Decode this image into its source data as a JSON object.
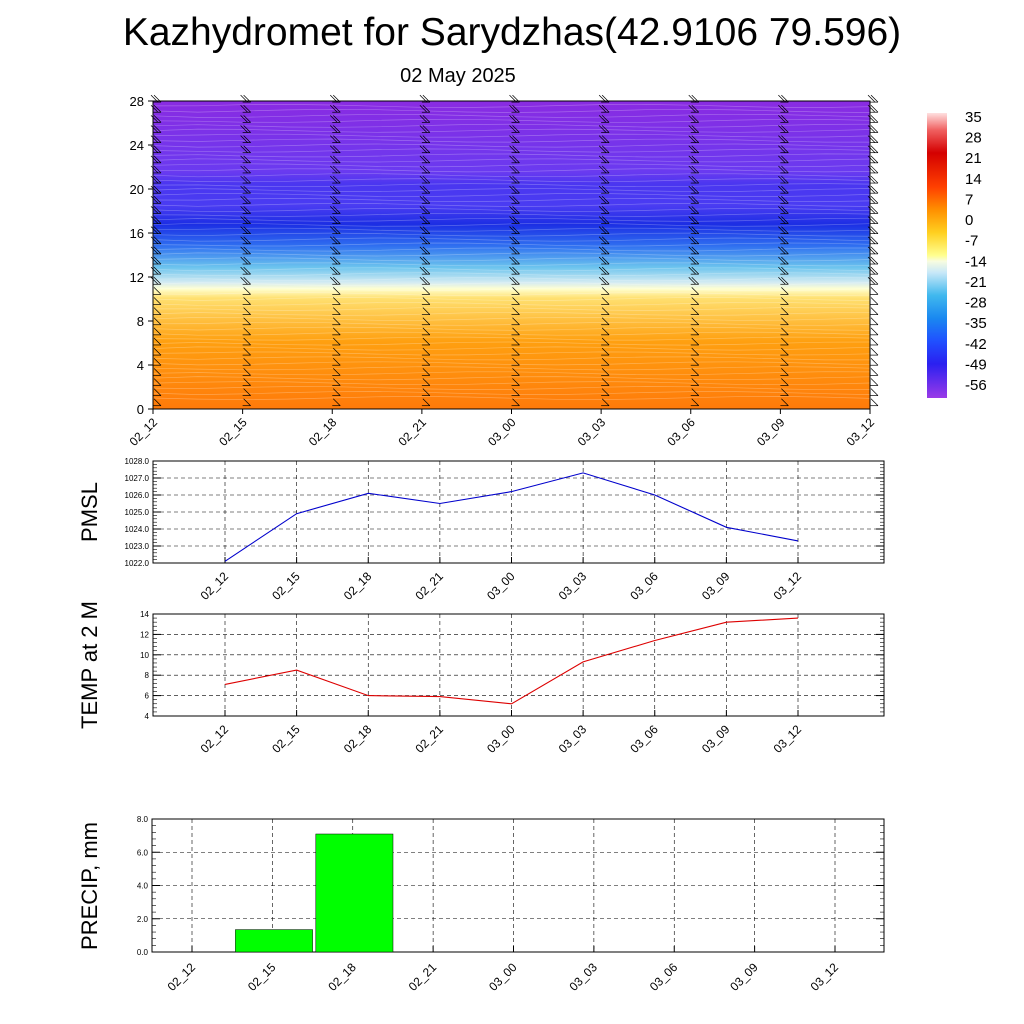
{
  "title": "Kazhydromet for Sarydzhas(42.9106 79.596)",
  "subtitle": "02 May 2025",
  "colors": {
    "pmsl_line": "#0000cc",
    "temp_line": "#dd0000",
    "precip_bar": "#00ff00",
    "grid": "#000000"
  },
  "chart_data": [
    {
      "id": "cross-section",
      "type": "heatmap",
      "title": "",
      "x": [
        "02_12",
        "02_15",
        "02_18",
        "02_21",
        "03_00",
        "03_03",
        "03_06",
        "03_09",
        "03_12"
      ],
      "y_ticks": [
        0,
        4,
        8,
        12,
        16,
        20,
        24,
        28
      ],
      "ylim": [
        0,
        28
      ],
      "ylabel": "",
      "color_scale_labels": [
        "35",
        "28",
        "21",
        "14",
        "7",
        "0",
        "-7",
        "-14",
        "-21",
        "-28",
        "-35",
        "-42",
        "-49",
        "-56"
      ],
      "overlay": "wind barbs"
    },
    {
      "id": "pmsl",
      "type": "line",
      "ylabel": "PMSL",
      "categories": [
        "02_12",
        "02_15",
        "02_18",
        "02_21",
        "03_00",
        "03_03",
        "03_06",
        "03_09",
        "03_12"
      ],
      "values": [
        1022.1,
        1024.9,
        1026.1,
        1025.5,
        1026.2,
        1027.3,
        1026.0,
        1024.1,
        1023.3
      ],
      "ylim": [
        1022.0,
        1028.0
      ],
      "y_ticks": [
        "1022.0",
        "1023.0",
        "1024.0",
        "1025.0",
        "1026.0",
        "1027.0",
        "1028.0"
      ]
    },
    {
      "id": "temp",
      "type": "line",
      "ylabel": "TEMP at 2 M",
      "categories": [
        "02_12",
        "02_15",
        "02_18",
        "02_21",
        "03_00",
        "03_03",
        "03_06",
        "03_09",
        "03_12"
      ],
      "values": [
        7.1,
        8.5,
        6.0,
        5.9,
        5.2,
        9.3,
        11.4,
        13.2,
        13.6
      ],
      "ylim": [
        4,
        14
      ],
      "y_ticks": [
        "4",
        "6",
        "8",
        "10",
        "12",
        "14"
      ]
    },
    {
      "id": "precip",
      "type": "bar",
      "ylabel": "PRECIP, mm",
      "categories": [
        "02_12",
        "02_15",
        "02_18",
        "02_21",
        "03_00",
        "03_03",
        "03_06",
        "03_09",
        "03_12"
      ],
      "values": [
        0,
        1.35,
        7.1,
        0,
        0,
        0,
        0,
        0,
        0
      ],
      "ylim": [
        0,
        8
      ],
      "y_ticks": [
        "0.0",
        "2.0",
        "4.0",
        "6.0",
        "8.0"
      ]
    }
  ]
}
